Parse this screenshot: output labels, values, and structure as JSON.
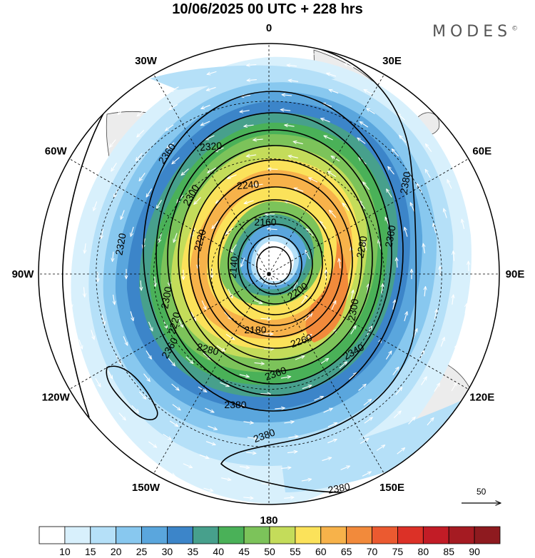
{
  "title": "10/06/2025  00 UTC  + 228 hrs",
  "brand": "MODES",
  "brand_mark": "©",
  "longitude_labels": [
    {
      "label": "0",
      "lon": 0
    },
    {
      "label": "30E",
      "lon": 30
    },
    {
      "label": "60E",
      "lon": 60
    },
    {
      "label": "90E",
      "lon": 90
    },
    {
      "label": "120E",
      "lon": 120
    },
    {
      "label": "150E",
      "lon": 150
    },
    {
      "label": "180",
      "lon": 180
    },
    {
      "label": "150W",
      "lon": -150
    },
    {
      "label": "120W",
      "lon": -120
    },
    {
      "label": "90W",
      "lon": -90
    },
    {
      "label": "60W",
      "lon": -60
    },
    {
      "label": "30W",
      "lon": -30
    }
  ],
  "contour_labels": [
    "2360",
    "2320",
    "2240",
    "2300",
    "2220",
    "2160",
    "2140",
    "2320",
    "2280",
    "2360",
    "2380",
    "2200",
    "2300",
    "2220",
    "2180",
    "2260",
    "2300",
    "2280",
    "2360",
    "2340",
    "2360",
    "2380",
    "2380",
    "2380"
  ],
  "wind_reference": {
    "value": "50"
  },
  "colorbar": {
    "ticks": [
      "10",
      "15",
      "20",
      "25",
      "30",
      "35",
      "40",
      "45",
      "50",
      "55",
      "60",
      "65",
      "70",
      "75",
      "80",
      "85",
      "90"
    ],
    "colors": [
      "#ffffff",
      "#d8f0fc",
      "#b5e0f8",
      "#88c8ef",
      "#5aa6dd",
      "#3c85c9",
      "#47a08c",
      "#4ab158",
      "#7cc35a",
      "#c4dc5a",
      "#fbe25a",
      "#f7b24a",
      "#f28a3b",
      "#eb5a30",
      "#dc3127",
      "#c21c26",
      "#a51b22",
      "#8e1a1f"
    ]
  }
}
